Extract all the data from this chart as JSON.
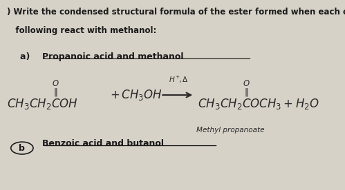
{
  "background_color": "#d6d2c8",
  "title_line1": ") Write the condensed structural formula of the ester formed when each of the",
  "title_line2": "   following react with methanol:",
  "part_a_label": "a)   Propanoic acid and methanol",
  "part_b_label": "b)  Benzoic acid and butanol",
  "ester_name": "Methyl propanoate",
  "font_color": "#1a1a1a",
  "handwriting_color": "#2a2a2a",
  "title_fontsize": 8.5,
  "label_fontsize": 9.0,
  "equation_fontsize": 10.0
}
